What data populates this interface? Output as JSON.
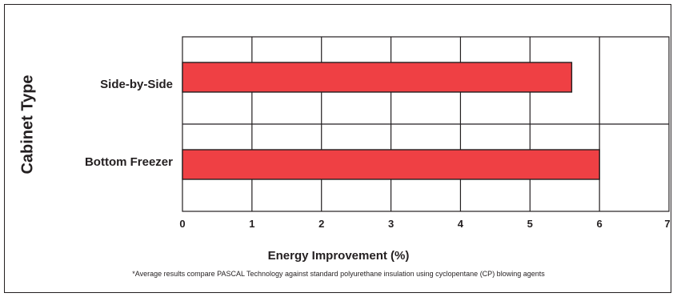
{
  "chart_data": {
    "type": "bar",
    "orientation": "horizontal",
    "categories": [
      "Side-by-Side",
      "Bottom Freezer"
    ],
    "values": [
      5.6,
      6.0
    ],
    "xlabel": "Energy Improvement (%)",
    "ylabel": "Cabinet Type",
    "xlim": [
      0,
      7
    ],
    "xticks": [
      "0",
      "1",
      "2",
      "3",
      "4",
      "5",
      "6",
      "7"
    ],
    "grid": true,
    "legend": "none",
    "bar_color": "#ef4044",
    "footnote": "*Average results compare PASCAL Technology against standard polyurethane insulation using cyclopentane (CP) blowing agents"
  }
}
